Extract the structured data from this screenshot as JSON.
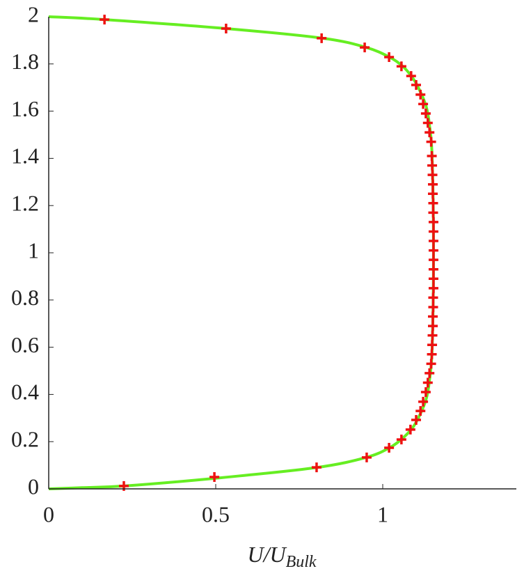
{
  "chart_data": {
    "type": "line",
    "xlabel": "U/U",
    "xlabel_subscript": "Bulk",
    "xlim": [
      0,
      1.4
    ],
    "ylim": [
      0,
      2
    ],
    "xticks": [
      0,
      0.5,
      1
    ],
    "yticks": [
      0,
      0.2,
      0.4,
      0.6,
      0.8,
      1,
      1.2,
      1.4,
      1.6,
      1.8,
      2
    ],
    "series": [
      {
        "type": "line",
        "color": "#66ee22",
        "x": [
          0,
          0.1,
          0.225,
          0.5,
          0.8,
          0.95,
          1.02,
          1.06,
          1.09,
          1.11,
          1.13,
          1.14,
          1.148,
          1.152,
          1.148,
          1.14,
          1.13,
          1.11,
          1.09,
          1.06,
          1.02,
          0.95,
          0.82,
          0.53,
          0.167,
          0
        ],
        "values": [
          0,
          0.005,
          0.012,
          0.045,
          0.09,
          0.133,
          0.174,
          0.215,
          0.26,
          0.31,
          0.38,
          0.46,
          0.6,
          1.0,
          1.4,
          1.54,
          1.62,
          1.69,
          1.74,
          1.79,
          1.829,
          1.87,
          1.909,
          1.95,
          1.988,
          2
        ]
      },
      {
        "type": "scatter",
        "color": "#ee1111",
        "x": [
          0.225,
          0.496,
          0.802,
          0.952,
          1.019,
          1.056,
          1.083,
          1.1,
          1.113,
          1.121,
          1.129,
          1.135,
          1.14,
          1.145,
          1.147,
          1.148,
          1.149,
          1.15,
          1.15,
          1.151,
          1.151,
          1.152,
          1.152,
          1.152,
          1.152,
          1.152,
          1.152,
          1.152,
          1.152,
          1.151,
          1.151,
          1.15,
          1.15,
          1.149,
          1.148,
          1.147,
          1.145,
          1.14,
          1.135,
          1.129,
          1.121,
          1.113,
          1.1,
          1.085,
          1.056,
          1.019,
          0.946,
          0.817,
          0.531,
          0.167
        ],
        "values": [
          0.012,
          0.05,
          0.091,
          0.133,
          0.174,
          0.209,
          0.251,
          0.292,
          0.33,
          0.369,
          0.41,
          0.45,
          0.49,
          0.53,
          0.57,
          0.61,
          0.65,
          0.69,
          0.73,
          0.77,
          0.81,
          0.85,
          0.89,
          0.93,
          0.97,
          1.01,
          1.05,
          1.09,
          1.13,
          1.17,
          1.21,
          1.25,
          1.29,
          1.33,
          1.37,
          1.41,
          1.47,
          1.51,
          1.55,
          1.59,
          1.63,
          1.67,
          1.711,
          1.749,
          1.79,
          1.829,
          1.87,
          1.909,
          1.95,
          1.988
        ]
      }
    ]
  }
}
